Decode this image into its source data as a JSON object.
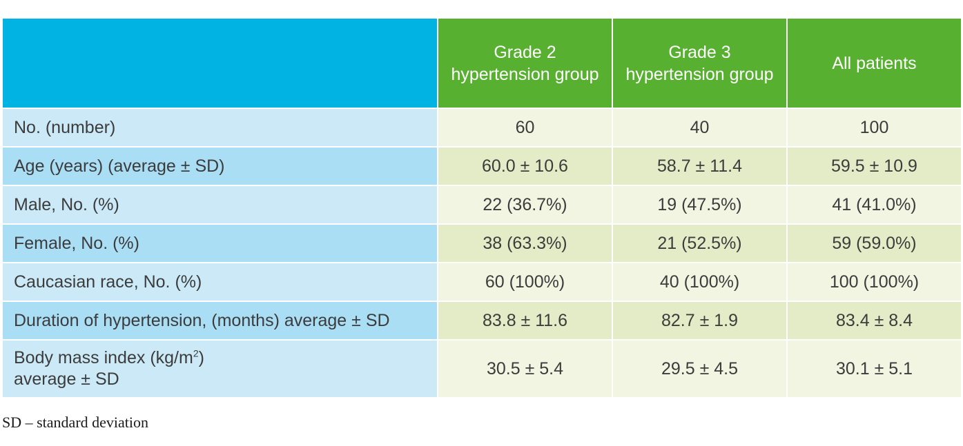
{
  "table": {
    "headers": [
      "",
      "Grade 2 hypertension group",
      "Grade 3 hypertension group",
      "All patients"
    ],
    "rows": [
      {
        "label": "No. (number)",
        "values": [
          "60",
          "40",
          "100"
        ]
      },
      {
        "label": "Age (years) (average ± SD)",
        "values": [
          "60.0 ± 10.6",
          "58.7 ± 11.4",
          "59.5 ± 10.9"
        ]
      },
      {
        "label": "Male, No. (%)",
        "values": [
          "22 (36.7%)",
          "19 (47.5%)",
          "41 (41.0%)"
        ]
      },
      {
        "label": "Female, No. (%)",
        "values": [
          "38 (63.3%)",
          "21 (52.5%)",
          "59 (59.0%)"
        ]
      },
      {
        "label": "Caucasian race, No. (%)",
        "values": [
          "60 (100%)",
          "40 (100%)",
          "100 (100%)"
        ]
      },
      {
        "label": "Duration of hypertension, (months) average ± SD",
        "values": [
          "83.8 ± 11.6",
          "82.7 ± 1.9",
          "83.4 ± 8.4"
        ]
      },
      {
        "label_line1": "Body mass index (kg/m",
        "label_sup": "2",
        "label_line1_end": ")",
        "label_line2": "average ± SD",
        "values": [
          "30.5 ± 5.4",
          "29.5 ± 4.5",
          "30.1 ± 5.1"
        ]
      }
    ]
  },
  "footnote": "SD – standard deviation",
  "colors": {
    "header_blue": "#00b3e3",
    "header_green": "#58b031",
    "label_light": "#cbe9f7",
    "label_dark": "#a9def5",
    "value_light": "#f1f5e2",
    "value_dark": "#e3ecc6"
  }
}
